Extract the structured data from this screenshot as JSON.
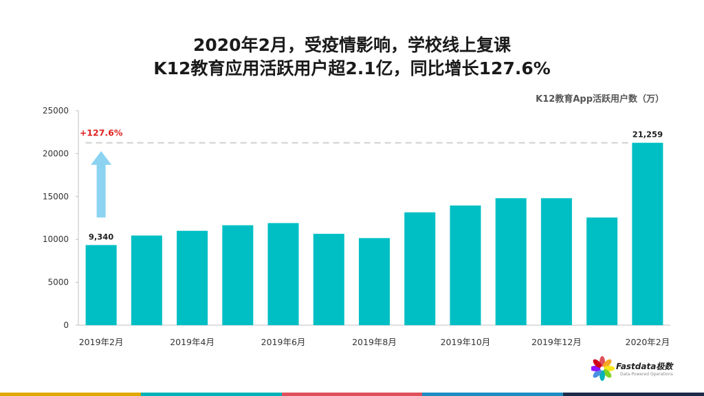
{
  "title_line1": "2020年2月，受疫情影响，学校线上复课",
  "title_line2": "K12教育应用活跃用户超2.1亿，同比增长127.6%",
  "unit_label": "K12教育App活跃用户数（万）",
  "growth_label": "+127.6%",
  "brand": {
    "name": "Fastdata极数",
    "subtitle": "Data-Powered Operations"
  },
  "colors": {
    "bar": "#00BFC4",
    "arrow": "#8CD3F2",
    "growth_text": "#E02020",
    "footer": [
      "#E0A800",
      "#00B3B8",
      "#E0505A",
      "#1E8BC3",
      "#1C2B4A"
    ]
  },
  "chart_data": {
    "type": "bar",
    "categories": [
      "2019年2月",
      "2019年3月",
      "2019年4月",
      "2019年5月",
      "2019年6月",
      "2019年7月",
      "2019年8月",
      "2019年9月",
      "2019年10月",
      "2019年11月",
      "2019年12月",
      "2020年1月",
      "2020年2月"
    ],
    "x_tick_labels": [
      "2019年2月",
      "",
      "2019年4月",
      "",
      "2019年6月",
      "",
      "2019年8月",
      "",
      "2019年10月",
      "",
      "2019年12月",
      "",
      "2020年2月"
    ],
    "values": [
      9340,
      10450,
      11000,
      11650,
      11900,
      10650,
      10150,
      13150,
      13950,
      14800,
      14800,
      12550,
      21259
    ],
    "data_labels": [
      "9,340",
      "",
      "",
      "",
      "",
      "",
      "",
      "",
      "",
      "",
      "",
      "",
      "21,259"
    ],
    "y_ticks": [
      0,
      5000,
      10000,
      15000,
      20000,
      25000
    ],
    "ylim": [
      0,
      25000
    ],
    "grid": false
  }
}
